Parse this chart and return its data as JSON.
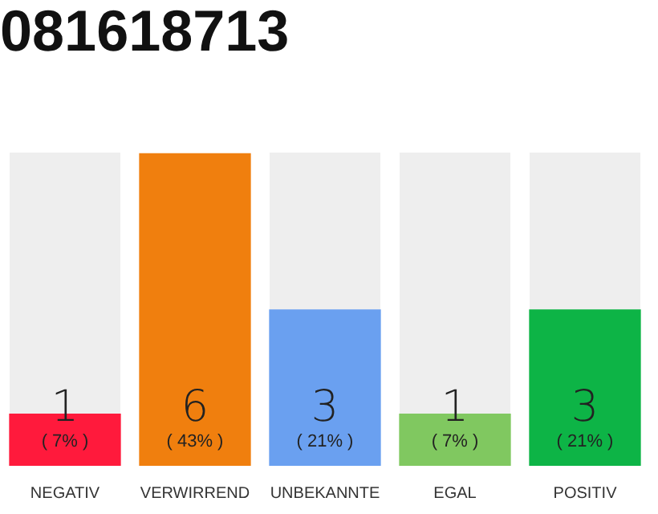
{
  "chart_data": {
    "type": "bar",
    "title": "081618713",
    "categories": [
      "NEGATIV",
      "VERWIRREND",
      "UNBEKANNTE",
      "EGAL",
      "POSITIV"
    ],
    "values": [
      1,
      6,
      3,
      1,
      3
    ],
    "colors": [
      "#ff1a3c",
      "#f07f0e",
      "#6aa0f0",
      "#80c860",
      "#0db446"
    ],
    "value_labels": [
      "1",
      "6",
      "3",
      "1",
      "3"
    ],
    "annotations": [
      "( 7% )",
      "( 43% )",
      "( 21% )",
      "( 7% )",
      "( 21% )"
    ],
    "tick_labels": "x",
    "grid": false,
    "legend": false
  }
}
